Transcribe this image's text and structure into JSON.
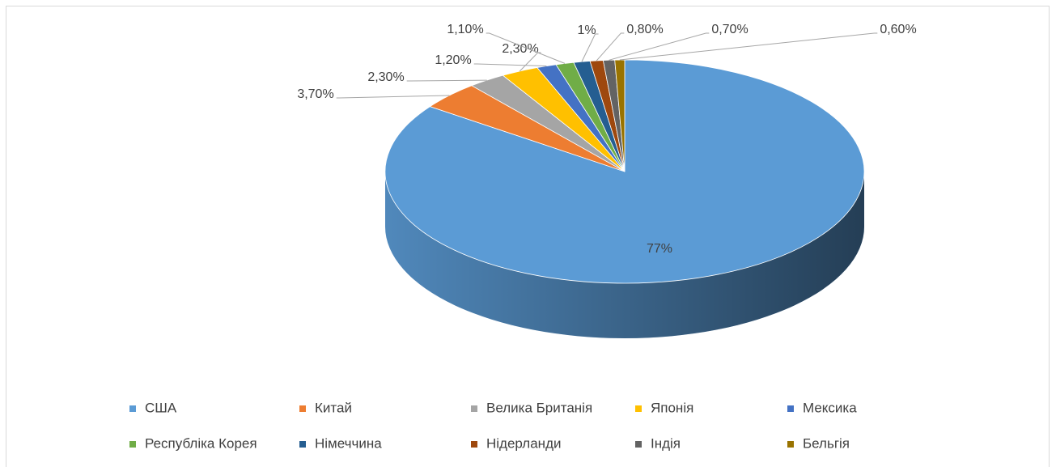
{
  "chart_data": {
    "type": "pie",
    "categories": [
      "США",
      "Китай",
      "Велика Британія",
      "Японія",
      "Мексика",
      "Республіка Корея",
      "Німеччина",
      "Нідерланди",
      "Індія",
      "Бельгія"
    ],
    "values": [
      77,
      3.7,
      2.3,
      2.3,
      1.2,
      1.1,
      1,
      0.8,
      0.7,
      0.6
    ],
    "value_labels": [
      "77%",
      "3,70%",
      "2,30%",
      "2,30%",
      "1,20%",
      "1,10%",
      "1%",
      "0,80%",
      "0,70%",
      "0,60%"
    ],
    "colors": [
      "#5b9bd5",
      "#ed7d31",
      "#a5a5a5",
      "#ffc000",
      "#4472c4",
      "#70ad47",
      "#255e91",
      "#9e480e",
      "#636363",
      "#997300"
    ],
    "legend": "bottom"
  }
}
